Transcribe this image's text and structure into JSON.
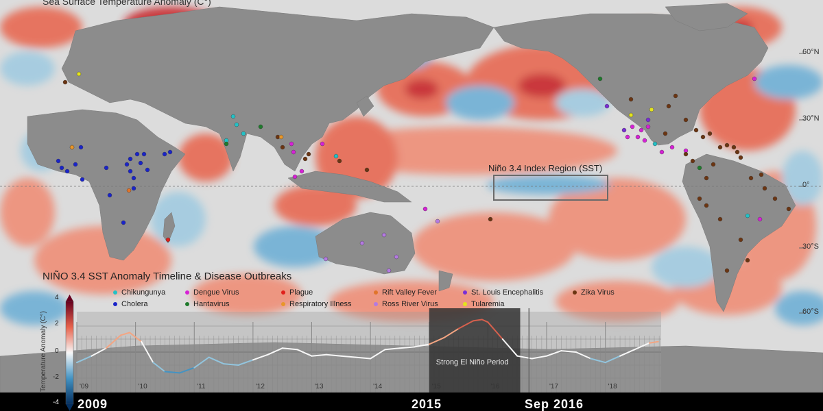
{
  "map": {
    "title": "Sea Surface Temperature Anomaly (C°)",
    "nino_region_label": "Niño 3.4 Index   Region (SST)",
    "lat_labels": [
      "60°N",
      "30°N",
      "0°",
      "30°S",
      "60°S"
    ],
    "colors": {
      "warm": "#e8634c",
      "hot": "#c81e23",
      "cool": "#6aaed6",
      "land": "#8c8c8c",
      "neutral": "#dcdcdc"
    }
  },
  "timeline": {
    "title": "NIÑO 3.4 SST Anomaly Timeline & Disease Outbreaks",
    "colorbar_label": "Temperature Anomaly (C°)",
    "colorbar_ticks": [
      "4",
      "2",
      "0",
      "-2",
      "-4"
    ],
    "highlight_label": "Strong El Niño Period",
    "tick_labels": [
      "'09",
      "'10",
      "'11",
      "'12",
      "'13",
      "'14",
      "'15",
      "'16",
      "'17",
      "'18"
    ],
    "year_labels": {
      "start": "2009",
      "mid": "2015",
      "current": "Sep 2016"
    }
  },
  "legend": [
    {
      "name": "Chikungunya",
      "color": "#23c1c6"
    },
    {
      "name": "Dengue Virus",
      "color": "#d622d6"
    },
    {
      "name": "Plague",
      "color": "#e0201c"
    },
    {
      "name": "Rift Valley Fever",
      "color": "#e0742a"
    },
    {
      "name": "St. Louis Encephalitis",
      "color": "#7a2ed6"
    },
    {
      "name": "Zika Virus",
      "color": "#6b3512"
    },
    {
      "name": "Cholera",
      "color": "#1a24c8"
    },
    {
      "name": "Hantavirus",
      "color": "#1f7a2c"
    },
    {
      "name": "Respiratory Illness",
      "color": "#e8962a"
    },
    {
      "name": "Ross River Virus",
      "color": "#b47ae0"
    },
    {
      "name": "Tularemia",
      "color": "#e4e41c"
    }
  ],
  "chart_data": {
    "type": "line",
    "title": "NIÑO 3.4 SST Anomaly Timeline & Disease Outbreaks",
    "ylabel": "Temperature Anomaly (C°)",
    "ylim": [
      -4,
      4
    ],
    "x": [
      2009.0,
      2009.25,
      2009.5,
      2009.75,
      2009.9,
      2010.1,
      2010.3,
      2010.5,
      2010.75,
      2011.0,
      2011.25,
      2011.5,
      2011.75,
      2012.0,
      2012.25,
      2012.5,
      2012.75,
      2013.0,
      2013.25,
      2013.5,
      2013.75,
      2014.0,
      2014.25,
      2014.5,
      2014.75,
      2015.0,
      2015.25,
      2015.5,
      2015.75,
      2015.9,
      2016.0,
      2016.25,
      2016.5,
      2016.75,
      2017.0,
      2017.25,
      2017.5,
      2017.75,
      2018.0,
      2018.25,
      2018.5,
      2018.75,
      2018.9
    ],
    "y": [
      -0.8,
      -0.3,
      0.3,
      1.3,
      1.5,
      0.8,
      -0.8,
      -1.5,
      -1.6,
      -1.2,
      -0.4,
      -0.9,
      -1.0,
      -0.6,
      -0.2,
      0.3,
      0.2,
      -0.3,
      -0.2,
      -0.3,
      -0.4,
      -0.5,
      0.2,
      0.3,
      0.4,
      0.6,
      1.1,
      1.8,
      2.4,
      2.5,
      2.3,
      1.0,
      -0.3,
      -0.5,
      -0.3,
      0.1,
      0.0,
      -0.5,
      -0.8,
      -0.3,
      0.2,
      0.7,
      0.8
    ]
  }
}
